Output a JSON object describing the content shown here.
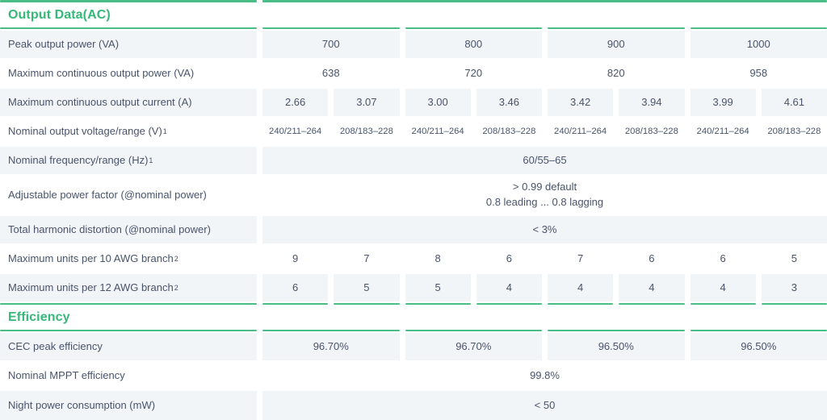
{
  "theme": {
    "accent_green": "#35b878",
    "line_green": "#4abc85",
    "row_shade_bg": "#f2f5f7",
    "text_color": "#49546b"
  },
  "output_section": {
    "title": "Output Data(AC)",
    "rows": [
      {
        "label": "Peak output power (VA)",
        "sup": "",
        "values": [
          "700",
          "800",
          "900",
          "1000"
        ]
      },
      {
        "label": "Maximum continuous output power (VA)",
        "sup": "",
        "values": [
          "638",
          "720",
          "820",
          "958"
        ]
      },
      {
        "label": "Maximum continuous output current (A)",
        "sup": "",
        "values": [
          "2.66",
          "3.07",
          "3.00",
          "3.46",
          "3.42",
          "3.94",
          "3.99",
          "4.61"
        ]
      },
      {
        "label": "Nominal output voltage/range (V)",
        "sup": "1",
        "values": [
          "240/211–264",
          "208/183–228",
          "240/211–264",
          "208/183–228",
          "240/211–264",
          "208/183–228",
          "240/211–264",
          "208/183–228"
        ]
      },
      {
        "label": "Nominal frequency/range (Hz)",
        "sup": "1",
        "value": "60/55–65"
      },
      {
        "label": "Adjustable power factor (@nominal power)",
        "sup": "",
        "value_lines": [
          "> 0.99 default",
          "0.8 leading ... 0.8 lagging"
        ]
      },
      {
        "label": "Total harmonic distortion (@nominal power)",
        "sup": "",
        "value": "< 3%"
      },
      {
        "label": "Maximum units per 10 AWG branch",
        "sup": "2",
        "values": [
          "9",
          "7",
          "8",
          "6",
          "7",
          "6",
          "6",
          "5"
        ]
      },
      {
        "label": "Maximum units per 12 AWG branch",
        "sup": "2",
        "values": [
          "6",
          "5",
          "5",
          "4",
          "4",
          "4",
          "4",
          "3"
        ]
      }
    ]
  },
  "efficiency_section": {
    "title": "Efficiency",
    "rows": [
      {
        "label": "CEC peak efficiency",
        "sup": "",
        "values": [
          "96.70%",
          "96.70%",
          "96.50%",
          "96.50%"
        ]
      },
      {
        "label": "Nominal MPPT efficiency",
        "sup": "",
        "value": "99.8%"
      },
      {
        "label": "Night power consumption (mW)",
        "sup": "",
        "value": "< 50"
      }
    ]
  }
}
